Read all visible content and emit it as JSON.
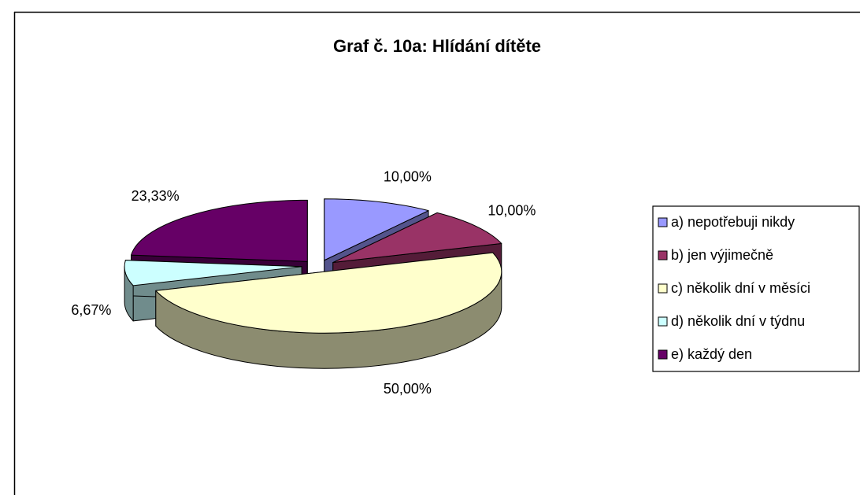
{
  "chart_data": {
    "type": "pie3d",
    "title": "Graf č. 10a: Hlídání dítěte",
    "categories": [
      "a) nepotřebuji nikdy",
      "b) jen výjimečně",
      "c) několik dní v měsíci",
      "d) několik dní v týdnu",
      "e) každý den"
    ],
    "values": [
      10,
      10,
      50,
      6.67,
      23.33
    ],
    "value_labels": [
      "10,00%",
      "10,00%",
      "50,00%",
      "6,67%",
      "23,33%"
    ],
    "colors": [
      "#9999ff",
      "#993366",
      "#ffffcc",
      "#ccffff",
      "#660066"
    ],
    "legend": "right"
  }
}
